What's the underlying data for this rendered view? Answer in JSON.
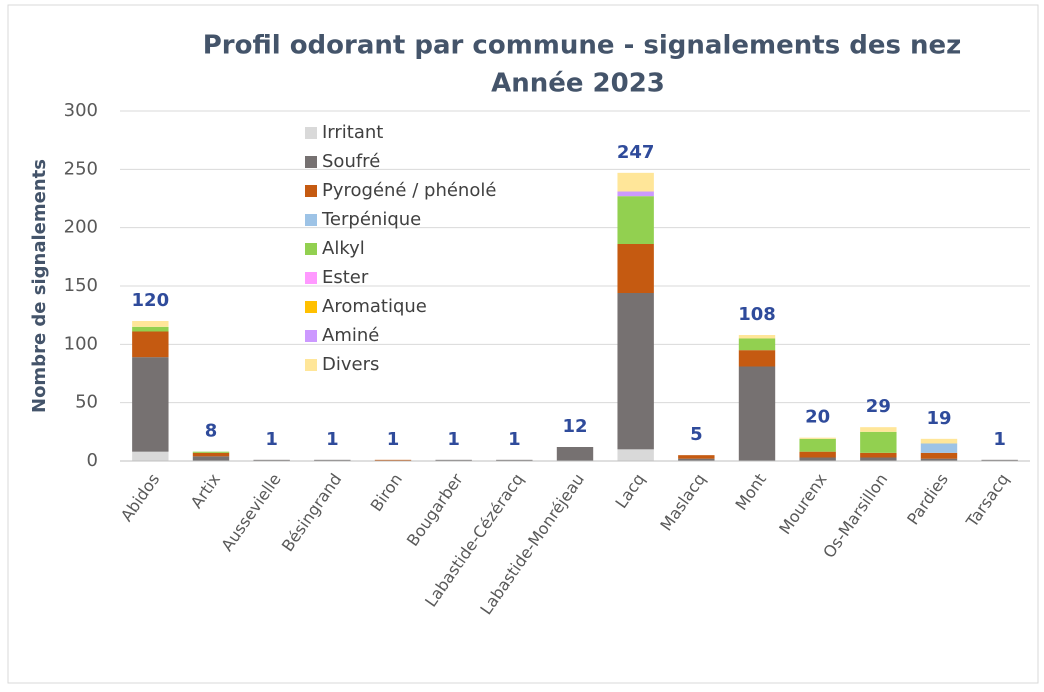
{
  "chart_data": {
    "type": "stacked_bar",
    "title": "Profil odorant par commune - signalements des nez",
    "subtitle": "Année 2023",
    "y_label": "Nombre de signalements",
    "categories": [
      "Abidos",
      "Artix",
      "Aussevielle",
      "Bésingrand",
      "Biron",
      "Bougarber",
      "Labastide-Cézéracq",
      "Labastide-Monréjeau",
      "Lacq",
      "Maslacq",
      "Mont",
      "Mourenx",
      "Os-Marsillon",
      "Pardies",
      "Tarsacq"
    ],
    "series": [
      {
        "name": "Irritant",
        "color": "#d9d9d9",
        "values": [
          8,
          0,
          0,
          0,
          0,
          0,
          0,
          0,
          10,
          0,
          0,
          0,
          0,
          0,
          0
        ]
      },
      {
        "name": "Soufré",
        "color": "#767171",
        "values": [
          81,
          4,
          1,
          1,
          0,
          1,
          1,
          12,
          134,
          2,
          81,
          3,
          3,
          2,
          1
        ]
      },
      {
        "name": "Pyrogéné / phénolé",
        "color": "#c55a11",
        "values": [
          22,
          3,
          0,
          0,
          1,
          0,
          0,
          0,
          42,
          3,
          14,
          5,
          4,
          5,
          0
        ]
      },
      {
        "name": "Terpénique",
        "color": "#9dc3e6",
        "values": [
          0,
          0,
          0,
          0,
          0,
          0,
          0,
          0,
          0,
          0,
          0,
          0,
          0,
          8,
          0
        ]
      },
      {
        "name": "Alkyl",
        "color": "#92d050",
        "values": [
          4,
          1,
          0,
          0,
          0,
          0,
          0,
          0,
          41,
          0,
          10,
          11,
          18,
          0,
          0
        ]
      },
      {
        "name": "Ester",
        "color": "#ff99ff",
        "values": [
          0,
          0,
          0,
          0,
          0,
          0,
          0,
          0,
          0,
          0,
          0,
          0,
          0,
          0,
          0
        ]
      },
      {
        "name": "Aromatique",
        "color": "#ffc000",
        "values": [
          0,
          0,
          0,
          0,
          0,
          0,
          0,
          0,
          0,
          0,
          0,
          0,
          0,
          0,
          0
        ]
      },
      {
        "name": "Aminé",
        "color": "#cc99ff",
        "values": [
          0,
          0,
          0,
          0,
          0,
          0,
          0,
          0,
          4,
          0,
          0,
          0,
          0,
          0,
          0
        ]
      },
      {
        "name": "Divers",
        "color": "#ffe699",
        "values": [
          5,
          0,
          0,
          0,
          0,
          0,
          0,
          0,
          16,
          0,
          3,
          1,
          4,
          4,
          0
        ]
      }
    ],
    "totals": [
      120,
      8,
      1,
      1,
      1,
      1,
      1,
      12,
      247,
      5,
      108,
      20,
      29,
      19,
      1
    ],
    "ylim": [
      0,
      300
    ],
    "yticks": [
      0,
      50,
      100,
      150,
      200,
      250,
      300
    ],
    "grid": true,
    "legend": "top-left"
  }
}
